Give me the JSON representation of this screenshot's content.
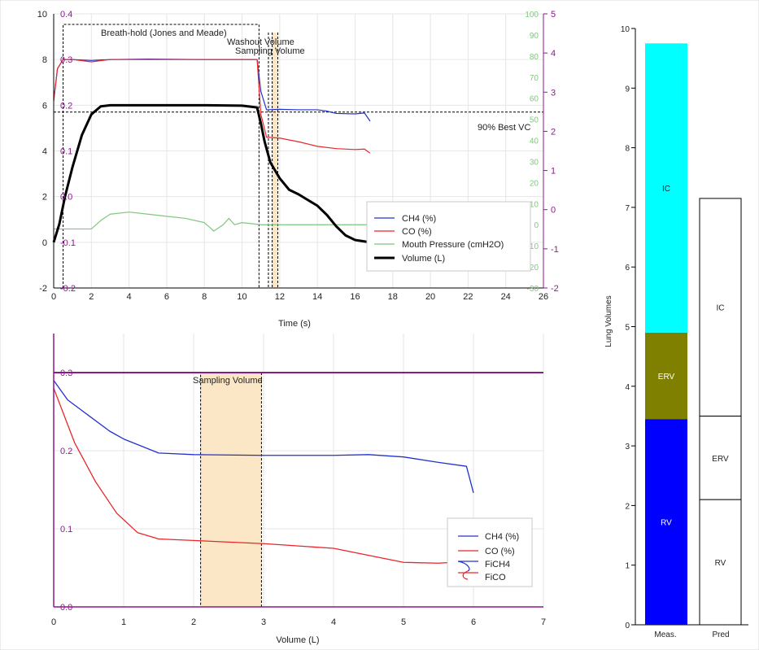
{
  "colors": {
    "ch4": "#2233cc",
    "co": "#e8262a",
    "mouth_pressure": "#7fc77f",
    "volume": "#000000",
    "purple_axis": "#8b1a8b",
    "green_axis": "#7fc77f",
    "sampling_fill": "#fbe7c6",
    "ic": "#00ffff",
    "erv": "#808000",
    "rv": "#0000ff"
  },
  "chart_data": [
    {
      "type": "line",
      "xlabel": "Time (s)",
      "xlim": [
        0,
        26
      ],
      "x_ticks": [
        "0",
        "2",
        "4",
        "6",
        "8",
        "10",
        "12",
        "14",
        "16",
        "18",
        "20",
        "22",
        "24",
        "26"
      ],
      "axes": {
        "volume_L": {
          "range": [
            -2,
            10
          ],
          "ticks": [
            "-2",
            "0",
            "2",
            "4",
            "6",
            "8",
            "10"
          ]
        },
        "fraction": {
          "range": [
            -0.2,
            0.4
          ],
          "ticks": [
            "-0.2",
            "-0.1",
            "0.0",
            "0.1",
            "0.2",
            "0.3",
            "0.4"
          ]
        },
        "pressure_cmH2O": {
          "range": [
            -30,
            100
          ],
          "ticks": [
            "-30",
            "-20",
            "-10",
            "0",
            "10",
            "20",
            "30",
            "40",
            "50",
            "60",
            "70",
            "80",
            "90",
            "100"
          ]
        },
        "far_right": {
          "range": [
            -2,
            5
          ],
          "ticks": [
            "-2",
            "-1",
            "0",
            "1",
            "2",
            "3",
            "4",
            "5"
          ]
        }
      },
      "legend": {
        "position": "bottom-right",
        "entries": [
          "CH4 (%)",
          "CO (%)",
          "Mouth Pressure (cmH2O)",
          "Volume (L)"
        ]
      },
      "annotations": {
        "breath_hold": "Breath-hold (Jones and Meade)",
        "washout": "Washout Volume",
        "sampling": "Sampling Volume",
        "best_vc": "90% Best VC"
      },
      "breath_hold_s": [
        0.5,
        10.9
      ],
      "washout_s": [
        11.4,
        11.6
      ],
      "sampling_s": [
        11.6,
        11.9
      ],
      "best_vc_L": 5.7,
      "series": [
        {
          "name": "Volume (L)",
          "axis": "volume_L",
          "x": [
            0,
            0.3,
            0.6,
            1,
            1.5,
            2,
            2.5,
            3,
            5,
            8,
            10,
            10.8,
            11,
            11.2,
            11.5,
            12,
            12.5,
            13,
            14,
            14.5,
            15,
            15.5,
            16,
            16.8
          ],
          "y": [
            0,
            0.8,
            2,
            3.3,
            4.7,
            5.6,
            5.95,
            6.0,
            6.0,
            6.0,
            5.98,
            5.9,
            5.2,
            4.4,
            3.5,
            2.8,
            2.3,
            2.1,
            1.6,
            1.2,
            0.7,
            0.3,
            0.1,
            0
          ]
        },
        {
          "name": "CH4 (%)",
          "axis": "fraction",
          "x": [
            0,
            0.2,
            0.5,
            1,
            2,
            3,
            5,
            8,
            10,
            10.8,
            11,
            11.3,
            12,
            13,
            14,
            14.5,
            15,
            16,
            16.5,
            16.8
          ],
          "y": [
            0.21,
            0.28,
            0.3,
            0.3,
            0.298,
            0.3,
            0.301,
            0.3,
            0.3,
            0.3,
            0.23,
            0.19,
            0.191,
            0.19,
            0.19,
            0.187,
            0.182,
            0.181,
            0.183,
            0.165
          ]
        },
        {
          "name": "CO (%)",
          "axis": "fraction",
          "x": [
            0,
            0.2,
            0.5,
            1,
            2,
            3,
            5,
            8,
            10,
            10.8,
            11,
            11.3,
            12,
            13,
            14,
            15,
            16,
            16.5,
            16.8
          ],
          "y": [
            0.21,
            0.28,
            0.3,
            0.3,
            0.295,
            0.3,
            0.3,
            0.3,
            0.3,
            0.3,
            0.18,
            0.13,
            0.128,
            0.12,
            0.11,
            0.105,
            0.103,
            0.104,
            0.095
          ]
        },
        {
          "name": "Mouth Pressure (cmH2O)",
          "axis": "pressure_cmH2O",
          "x": [
            0,
            1,
            2,
            2.5,
            3,
            4,
            5,
            6,
            7,
            8,
            8.5,
            9,
            9.3,
            9.6,
            10,
            11,
            12,
            14,
            16,
            16.8
          ],
          "y": [
            -2,
            -2,
            -2,
            2,
            5,
            6,
            5,
            4,
            3,
            1,
            -3,
            0,
            3,
            0,
            1,
            0,
            0,
            0,
            0,
            0
          ]
        }
      ]
    },
    {
      "type": "line",
      "xlabel": "Volume (L)",
      "xlim": [
        0,
        7
      ],
      "ylim": [
        0,
        0.35
      ],
      "x_ticks": [
        "0",
        "1",
        "2",
        "3",
        "4",
        "5",
        "6",
        "7"
      ],
      "y_ticks": [
        "0.0",
        "0.1",
        "0.2",
        "0.3"
      ],
      "legend": {
        "position": "bottom-right",
        "entries": [
          "CH4 (%)",
          "CO (%)",
          "FiCH4",
          "FiCO"
        ]
      },
      "annotations": {
        "sampling": "Sampling Volume"
      },
      "sampling_L": [
        2.1,
        2.97
      ],
      "reference": {
        "name": "FiCH4 / FiCO",
        "y": 0.3
      },
      "series": [
        {
          "name": "CH4 (%)",
          "x": [
            0,
            0.2,
            0.5,
            0.8,
            1,
            1.5,
            2,
            3,
            4,
            4.5,
            5,
            5.5,
            5.9,
            6.0
          ],
          "y": [
            0.29,
            0.265,
            0.245,
            0.225,
            0.215,
            0.197,
            0.195,
            0.194,
            0.194,
            0.195,
            0.192,
            0.185,
            0.18,
            0.146
          ]
        },
        {
          "name": "CO (%)",
          "x": [
            0,
            0.3,
            0.6,
            0.9,
            1.2,
            1.5,
            2,
            3,
            4,
            5,
            5.5,
            5.9
          ],
          "y": [
            0.28,
            0.21,
            0.16,
            0.12,
            0.095,
            0.087,
            0.085,
            0.081,
            0.075,
            0.057,
            0.056,
            0.058
          ]
        }
      ]
    },
    {
      "type": "bar",
      "ylabel": "Lung Volumes",
      "ylim": [
        0,
        10
      ],
      "y_ticks": [
        "0",
        "1",
        "2",
        "3",
        "4",
        "5",
        "6",
        "7",
        "8",
        "9",
        "10"
      ],
      "categories": [
        "Meas.",
        "Pred"
      ],
      "stacks": [
        {
          "category": "Meas.",
          "segments": [
            {
              "name": "RV",
              "value": 3.45
            },
            {
              "name": "ERV",
              "value": 1.45
            },
            {
              "name": "IC",
              "value": 4.85
            }
          ]
        },
        {
          "category": "Pred",
          "segments": [
            {
              "name": "RV",
              "value": 2.1
            },
            {
              "name": "ERV",
              "value": 1.4
            },
            {
              "name": "IC",
              "value": 3.65
            }
          ]
        }
      ]
    }
  ]
}
